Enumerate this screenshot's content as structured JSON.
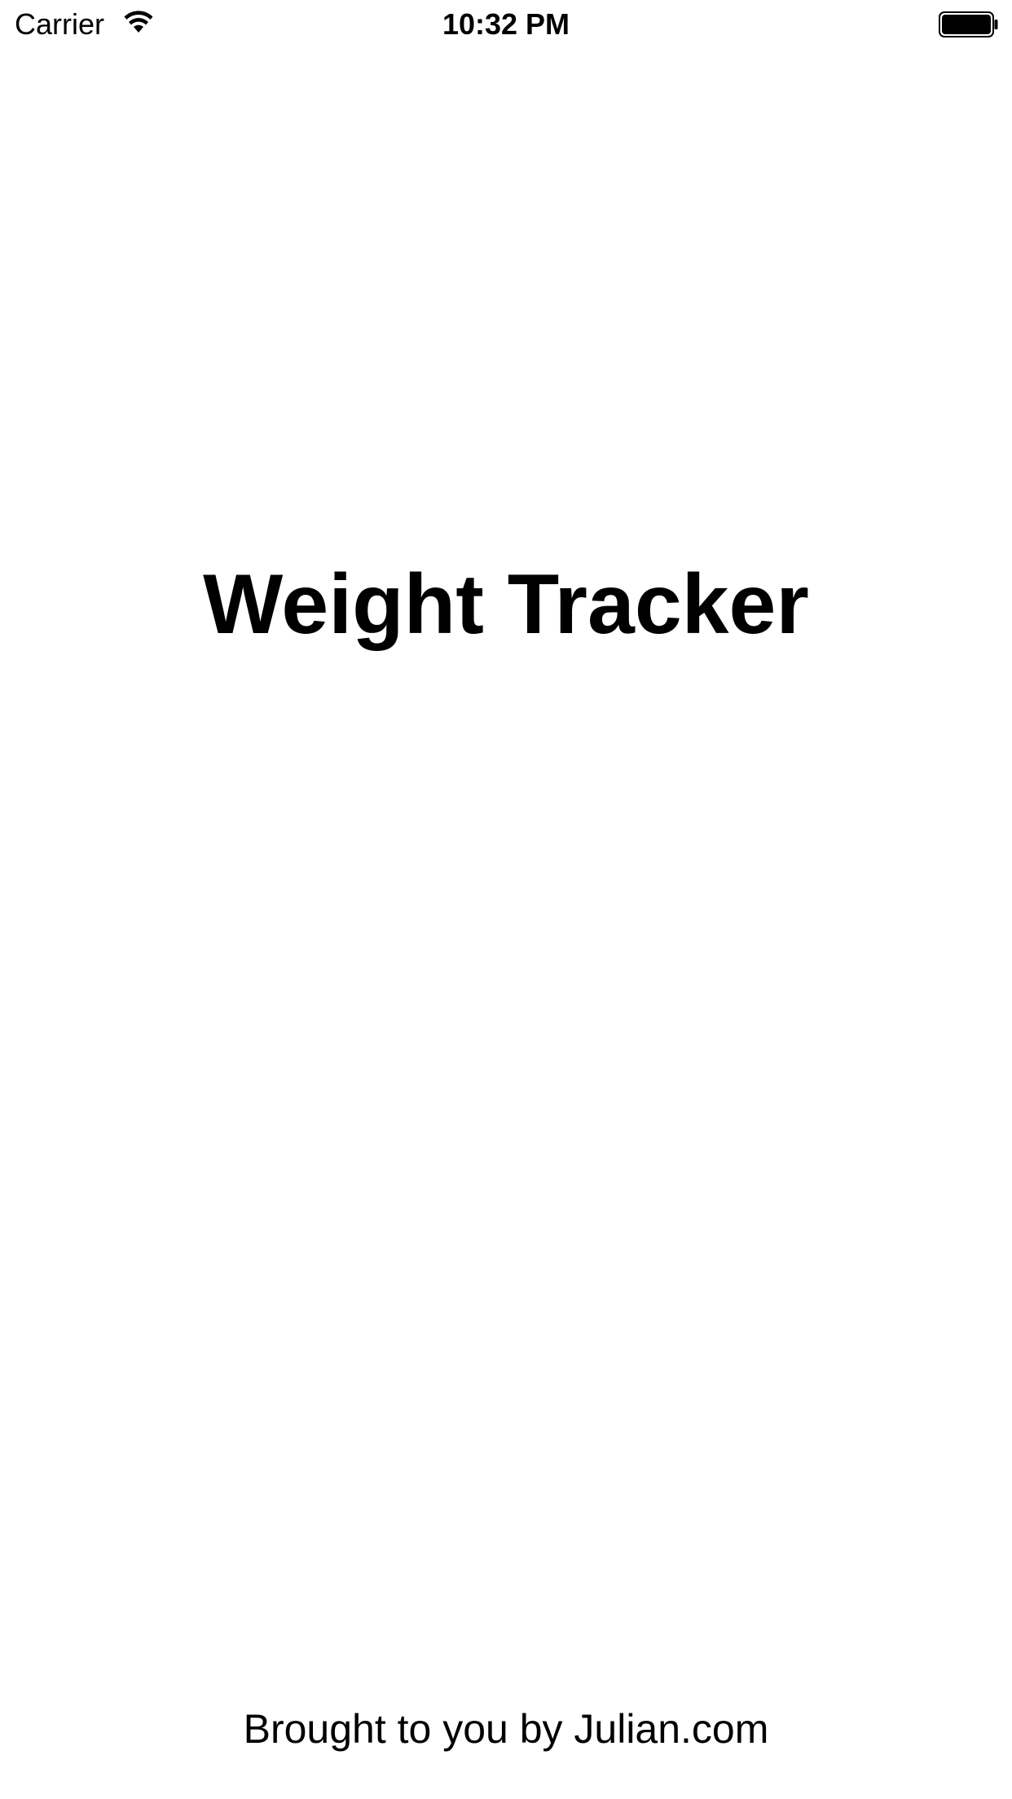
{
  "status_bar": {
    "carrier": "Carrier",
    "time": "10:32 PM",
    "wifi_icon": "wifi-icon",
    "battery_icon": "battery-icon"
  },
  "main": {
    "title": "Weight Tracker",
    "credit": "Brought to you by Julian.com"
  },
  "colors": {
    "background": "#ffffff",
    "text": "#000000"
  }
}
